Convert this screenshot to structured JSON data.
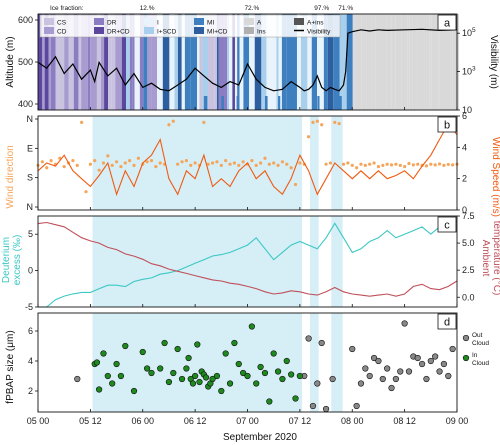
{
  "figure": {
    "xlabel": "September 2020",
    "x_tick_labels": [
      "05 00",
      "05 12",
      "06 00",
      "06 12",
      "07 00",
      "07 12",
      "08 00",
      "08 12",
      "09 00"
    ],
    "x_ticks_hours": [
      0,
      12,
      24,
      36,
      48,
      60,
      72,
      84,
      96
    ],
    "x_range_hours": [
      0,
      96
    ],
    "x_origin": "2020-09-05 00:00",
    "cloud_periods_hours": [
      [
        12.5,
        60.5
      ],
      [
        62.3,
        64.3
      ],
      [
        67.2,
        69.8
      ]
    ]
  },
  "panel_a": {
    "letter": "a",
    "ice_fraction_title": "Ice fraction:",
    "ice_fraction_labels": [
      {
        "text": "12.%",
        "hour": 25
      },
      {
        "text": "72.%",
        "hour": 49
      },
      {
        "text": "97.%",
        "hour": 65
      },
      {
        "text": "71.%",
        "hour": 70.5
      }
    ],
    "ylabel_left": "Altitude (m)",
    "ylabel_right": "Visibility (m)",
    "left_ticks": [
      "400",
      "500",
      "600"
    ],
    "right_ticks": [
      "10",
      "10^3",
      "10^5"
    ],
    "legend": [
      {
        "label": "CS",
        "color": "#c9c3e0"
      },
      {
        "label": "CD",
        "color": "#a79bd0"
      },
      {
        "label": "DR",
        "color": "#8c7cc2"
      },
      {
        "label": "DR+CD",
        "color": "#5b479e"
      },
      {
        "label": "I",
        "color": "#e8f3fb"
      },
      {
        "label": "I+SCD",
        "color": "#a8d0ec"
      },
      {
        "label": "MI",
        "color": "#3d7fbf"
      },
      {
        "label": "MI+CD",
        "color": "#2d5fa0"
      },
      {
        "label": "A",
        "color": "#d9d9d9"
      },
      {
        "label": "Ins",
        "color": "#b0b0b0"
      },
      {
        "label": "A+ins",
        "color": "#555555"
      },
      {
        "label": "Visibility",
        "color": "#000000"
      }
    ]
  },
  "panel_b": {
    "letter": "b",
    "ylabel_left": "Wind direction",
    "ylabel_right": "Wind Speed (m/s)",
    "left_ticks": [
      "N",
      "S",
      "E",
      "N"
    ],
    "right_ticks": [
      "0",
      "2",
      "4",
      "6"
    ],
    "direction_color": "#f5a55a",
    "speed_color": "#f05a10"
  },
  "panel_c": {
    "letter": "c",
    "ylabel_left_1": "Deuterium",
    "ylabel_left_2": "excess (‰)",
    "ylabel_right_1": "Ambient",
    "ylabel_right_2": "temperature (°C)",
    "left_ticks": [
      "-5",
      "0",
      "5"
    ],
    "right_ticks": [
      "0.0",
      "2.5",
      "5.0",
      "7.5"
    ],
    "dexcess_color": "#3cc8c4",
    "temp_color": "#c0505a"
  },
  "panel_d": {
    "letter": "d",
    "ylabel": "fPBAP size (μm)",
    "left_ticks": [
      "2",
      "4",
      "6"
    ],
    "legend": [
      {
        "line1": "Out",
        "line2": "Cloud",
        "color": "#888888"
      },
      {
        "line1": "In",
        "line2": "Cloud",
        "color": "#1e8a1e"
      }
    ]
  },
  "chart_data": [
    {
      "type": "line",
      "panel": "a",
      "title": "",
      "xlabel": "",
      "ylabel": "Visibility (m)",
      "yscale": "log",
      "ylim": [
        10,
        1000000
      ],
      "series": [
        {
          "name": "Visibility",
          "x": [
            0,
            2,
            4,
            6,
            8,
            10,
            12,
            13,
            14,
            16,
            18,
            20,
            22,
            24,
            26,
            28,
            30,
            32,
            34,
            36,
            38,
            40,
            42,
            44,
            46,
            48,
            50,
            52,
            54,
            56,
            58,
            60,
            61,
            62,
            63,
            64,
            65,
            66,
            67,
            68,
            69,
            70,
            70.5,
            71,
            72,
            74,
            76,
            78,
            80,
            84,
            88,
            92,
            96
          ],
          "y": [
            3000,
            1500,
            6000,
            800,
            2500,
            400,
            1200,
            300,
            3000,
            600,
            1500,
            200,
            800,
            150,
            250,
            120,
            100,
            200,
            400,
            1500,
            600,
            250,
            150,
            300,
            200,
            2500,
            400,
            150,
            100,
            120,
            300,
            150,
            100,
            120,
            200,
            600,
            150,
            100,
            150,
            120,
            100,
            200,
            1000,
            100000,
            120000,
            150000,
            130000,
            150000,
            140000,
            150000,
            160000,
            140000,
            150000
          ]
        }
      ]
    },
    {
      "type": "scatter",
      "panel": "b",
      "ylabel": "Wind direction",
      "y_categories": [
        "N",
        "S",
        "E",
        "N"
      ],
      "series": [
        {
          "name": "",
          "x": [
            0,
            1,
            2,
            3,
            4,
            5,
            6,
            7,
            8,
            9,
            10,
            11,
            12,
            13,
            14,
            15,
            16,
            17,
            18,
            19,
            20,
            21,
            22,
            23,
            24,
            25,
            26,
            27,
            28,
            29,
            30,
            31,
            32,
            33,
            34,
            35,
            36,
            37,
            38,
            39,
            40,
            41,
            42,
            43,
            44,
            45,
            46,
            47,
            48,
            49,
            50,
            51,
            52,
            53,
            54,
            55,
            56,
            57,
            58,
            59,
            60,
            61,
            62,
            63,
            64,
            65,
            66,
            67,
            68,
            69,
            70,
            71,
            72,
            73,
            74,
            75,
            76,
            77,
            78,
            79,
            80,
            81,
            82,
            83,
            84,
            85,
            86,
            87,
            88,
            89,
            90,
            91,
            92,
            93,
            94,
            95,
            96
          ],
          "y": [
            170,
            185,
            160,
            190,
            175,
            200,
            165,
            180,
            190,
            170,
            350,
            60,
            175,
            190,
            150,
            180,
            210,
            170,
            185,
            165,
            180,
            190,
            170,
            200,
            175,
            185,
            190,
            165,
            180,
            175,
            340,
            355,
            175,
            185,
            190,
            170,
            180,
            170,
            350,
            175,
            180,
            185,
            170,
            190,
            175,
            180,
            170,
            185,
            175,
            190,
            170,
            180,
            200,
            175,
            180,
            170,
            185,
            175,
            160,
            90,
            180,
            175,
            290,
            350,
            355,
            340,
            175,
            180,
            350,
            345,
            175,
            180,
            170,
            160,
            175,
            170,
            175,
            180,
            165,
            170,
            175,
            172,
            175,
            170,
            165,
            178,
            172,
            175,
            170,
            168,
            175,
            172,
            176,
            170,
            174,
            172,
            175
          ]
        }
      ]
    },
    {
      "type": "line",
      "panel": "b",
      "ylabel": "Wind Speed (m/s)",
      "ylim": [
        0,
        6
      ],
      "series": [
        {
          "name": "",
          "x": [
            0,
            2,
            4,
            6,
            8,
            10,
            12,
            14,
            16,
            18,
            20,
            22,
            24,
            26,
            28,
            30,
            32,
            34,
            36,
            38,
            40,
            42,
            44,
            46,
            48,
            50,
            52,
            54,
            56,
            58,
            60,
            62,
            64,
            66,
            68,
            70,
            72,
            74,
            76,
            78,
            80,
            82,
            84,
            86,
            88,
            90,
            92,
            94,
            96
          ],
          "y": [
            2.5,
            3.0,
            2.8,
            3.5,
            2.5,
            2.0,
            1.5,
            2.2,
            3.0,
            1.0,
            2.5,
            1.5,
            3.0,
            3.5,
            4.5,
            2.0,
            1.0,
            2.5,
            2.0,
            3.5,
            1.5,
            2.0,
            1.5,
            2.5,
            3.0,
            2.0,
            2.5,
            1.5,
            1.0,
            2.0,
            3.5,
            2.5,
            1.0,
            2.0,
            3.0,
            2.5,
            2.0,
            2.5,
            2.0,
            2.5,
            2.0,
            2.2,
            2.5,
            2.0,
            2.8,
            3.5,
            4.5,
            5.5,
            4.8
          ]
        }
      ]
    },
    {
      "type": "line",
      "panel": "c",
      "ylabel": "Deuterium excess (‰)",
      "ylim": [
        -5,
        7.5
      ],
      "series": [
        {
          "name": "",
          "x": [
            0,
            2,
            4,
            6,
            8,
            10,
            12,
            14,
            16,
            18,
            20,
            22,
            24,
            26,
            28,
            30,
            32,
            34,
            36,
            38,
            40,
            42,
            44,
            46,
            48,
            50,
            52,
            54,
            56,
            58,
            60,
            62,
            64,
            66,
            68,
            70,
            72,
            74,
            76,
            78,
            80,
            82,
            84,
            86,
            88,
            90,
            92,
            94,
            96
          ],
          "y": [
            -5.0,
            -5.0,
            -4.0,
            -3.5,
            -3.2,
            -3.0,
            -3.0,
            -2.5,
            -2.0,
            -2.0,
            -2.2,
            -1.5,
            -1.2,
            -1.0,
            -0.5,
            -0.3,
            0.0,
            0.5,
            1.0,
            1.5,
            2.0,
            2.2,
            2.5,
            3.0,
            3.5,
            4.5,
            3.0,
            1.5,
            2.5,
            3.5,
            4.0,
            3.5,
            3.0,
            4.5,
            6.5,
            4.5,
            2.5,
            3.0,
            4.0,
            4.5,
            5.5,
            4.5,
            5.0,
            5.5,
            6.0,
            5.0,
            6.0,
            6.5,
            6.8
          ]
        }
      ]
    },
    {
      "type": "line",
      "panel": "c",
      "ylabel": "Ambient temperature (°C)",
      "ylim": [
        -0.9,
        7.5
      ],
      "series": [
        {
          "name": "",
          "x": [
            0,
            2,
            4,
            6,
            8,
            10,
            12,
            14,
            16,
            18,
            20,
            22,
            24,
            26,
            28,
            30,
            32,
            34,
            36,
            38,
            40,
            42,
            44,
            46,
            48,
            50,
            52,
            54,
            56,
            58,
            60,
            62,
            64,
            66,
            68,
            70,
            72,
            74,
            76,
            78,
            80,
            82,
            84,
            86,
            88,
            90,
            92,
            94,
            96
          ],
          "y": [
            6.8,
            6.9,
            6.7,
            6.5,
            6.0,
            5.5,
            5.2,
            5.0,
            4.6,
            4.4,
            4.0,
            3.8,
            3.5,
            3.1,
            2.9,
            2.6,
            2.4,
            2.2,
            2.0,
            1.8,
            1.6,
            1.5,
            1.3,
            1.2,
            1.0,
            0.8,
            0.5,
            0.3,
            0.4,
            0.6,
            0.5,
            0.3,
            0.2,
            0.5,
            0.9,
            0.5,
            0.3,
            0.2,
            0.1,
            0.2,
            0.3,
            0.1,
            0.3,
            1.0,
            1.2,
            0.8,
            0.7,
            1.0,
            1.5
          ]
        }
      ]
    },
    {
      "type": "scatter",
      "panel": "d",
      "ylabel": "fPBAP size (μm)",
      "ylim": [
        0.6,
        7.2
      ],
      "series": [
        {
          "name": "Out Cloud",
          "x": [
            9,
            61,
            62,
            63,
            64,
            65,
            66,
            67.5,
            72,
            73,
            74,
            75,
            76,
            77,
            78,
            79,
            80,
            81,
            82,
            83,
            84,
            85,
            86,
            87,
            88,
            89,
            90,
            91,
            92,
            93,
            94,
            95
          ],
          "y": [
            2.8,
            3.0,
            5.5,
            1.0,
            2.5,
            5.2,
            0.8,
            2.8,
            4.8,
            1.0,
            2.5,
            3.5,
            3.0,
            4.2,
            4.0,
            2.8,
            3.5,
            2.2,
            2.8,
            3.3,
            6.5,
            3.3,
            4.3,
            4.2,
            3.8,
            2.8,
            4.0,
            4.3,
            3.3,
            3.8,
            3.0,
            4.8
          ]
        },
        {
          "name": "In Cloud",
          "x": [
            13,
            13.5,
            14,
            15,
            16,
            17,
            18,
            19,
            20,
            22,
            24,
            25,
            26,
            28,
            29,
            30,
            31,
            32,
            33,
            34,
            34.5,
            35,
            35.5,
            36,
            36.5,
            37,
            37.5,
            38,
            38.5,
            39,
            39.5,
            40,
            41,
            42,
            43,
            44,
            45,
            46,
            47,
            48,
            49,
            50,
            51,
            52,
            53,
            54,
            55,
            56,
            57,
            58,
            59,
            60
          ],
          "y": [
            3.8,
            3.9,
            2.1,
            4.5,
            3.0,
            2.5,
            3.8,
            3.0,
            5.0,
            2.0,
            4.6,
            3.5,
            3.2,
            3.5,
            5.2,
            2.6,
            3.2,
            4.8,
            2.8,
            3.5,
            4.2,
            2.8,
            2.5,
            3.0,
            5.1,
            2.6,
            3.3,
            3.1,
            2.9,
            2.3,
            2.5,
            2.8,
            3.0,
            2.0,
            4.5,
            2.5,
            5.2,
            3.8,
            3.2,
            3.0,
            6.3,
            2.5,
            3.6,
            3.2,
            1.3,
            4.5,
            3.3,
            2.8,
            4.0,
            3.1,
            1.5,
            3.0
          ]
        }
      ]
    }
  ]
}
